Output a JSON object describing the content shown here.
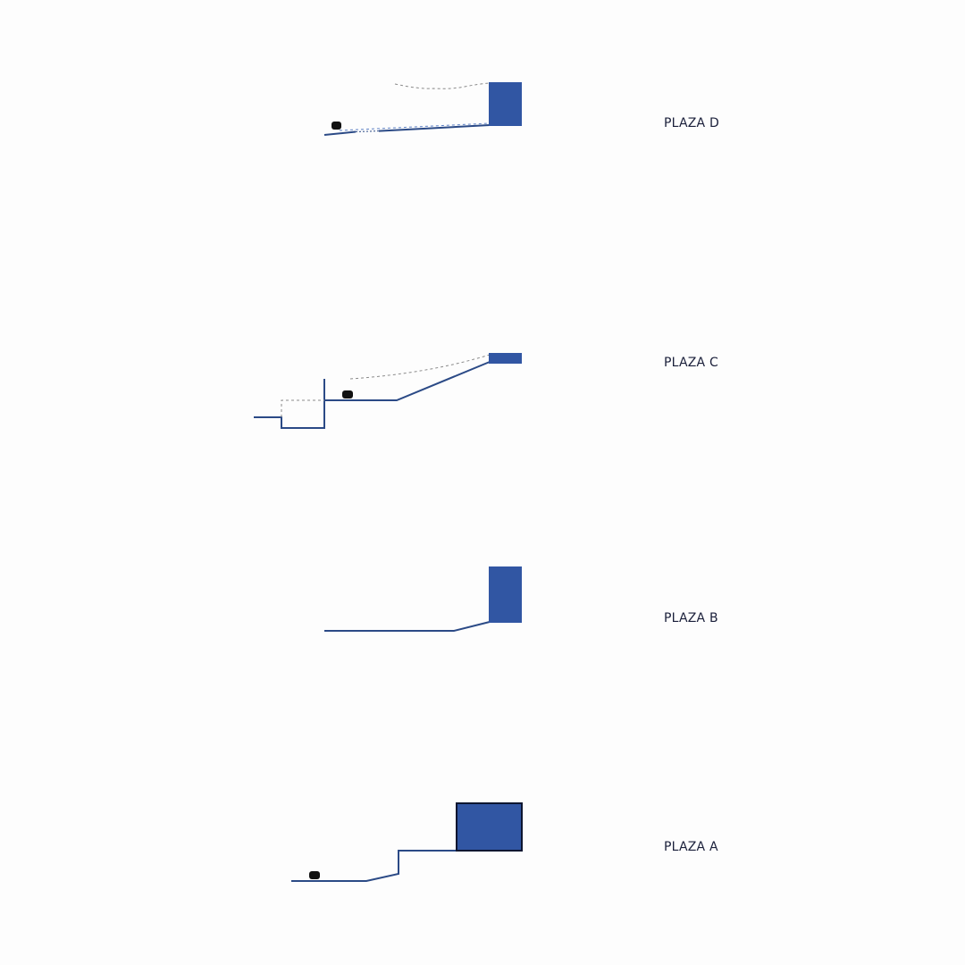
{
  "colors": {
    "building": "#3156a3",
    "ground_line": "#2b4a86",
    "dashed": "#8a8a8a",
    "person": "#111111",
    "text": "#1a1f3a",
    "background": "#fdfdfd"
  },
  "sections": [
    {
      "id": "d",
      "label": "PLAZA D"
    },
    {
      "id": "c",
      "label": "PLAZA C"
    },
    {
      "id": "b",
      "label": "PLAZA B"
    },
    {
      "id": "a",
      "label": "PLAZA A"
    }
  ]
}
